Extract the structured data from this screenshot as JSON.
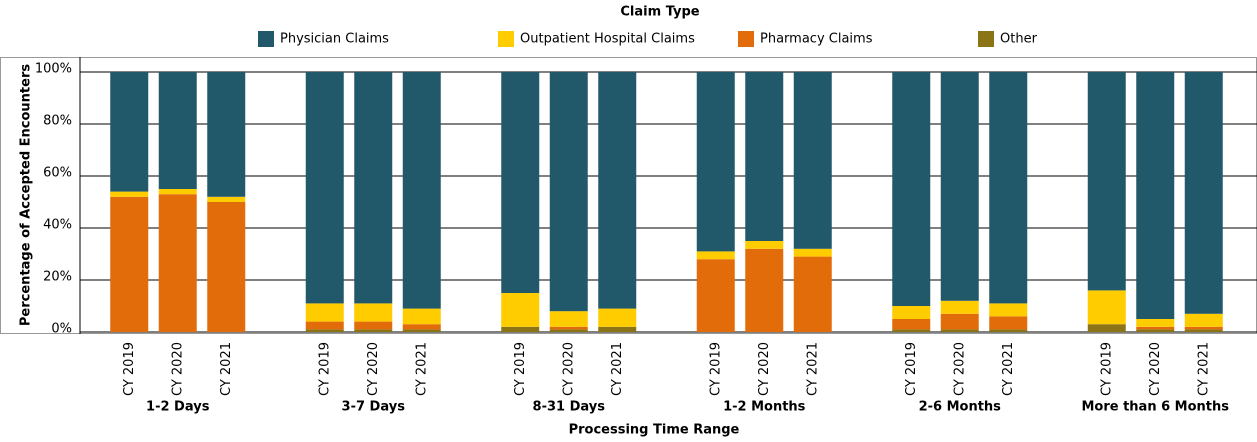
{
  "chart_data": {
    "type": "stacked_bar",
    "legend_title": "Claim Type",
    "x_label": "Processing Time Range",
    "y_label": "Percentage of Accepted Encounters",
    "groups": [
      "1-2 Days",
      "3-7 Days",
      "8-31 Days",
      "1-2 Months",
      "2-6 Months",
      "More than 6 Months"
    ],
    "categories": [
      "CY 2019",
      "CY 2020",
      "CY 2021",
      "CY 2019",
      "CY 2020",
      "CY 2021",
      "CY 2019",
      "CY 2020",
      "CY 2021",
      "CY 2019",
      "CY 2020",
      "CY 2021",
      "CY 2019",
      "CY 2020",
      "CY 2021",
      "CY 2019",
      "CY 2020",
      "CY 2021"
    ],
    "series": [
      {
        "name": "Other",
        "color": "#8b7415",
        "values": [
          0,
          0,
          0,
          1,
          1,
          1,
          2,
          1,
          2,
          0,
          0,
          0,
          1,
          1,
          1,
          3,
          1,
          1
        ]
      },
      {
        "name": "Pharmacy Claims",
        "color": "#e36c0a",
        "values": [
          52,
          53,
          50,
          3,
          3,
          2,
          0,
          1,
          0,
          28,
          32,
          29,
          4,
          6,
          5,
          0,
          1,
          1
        ]
      },
      {
        "name": "Outpatient Hospital Claims",
        "color": "#ffcc00",
        "values": [
          2,
          2,
          2,
          7,
          7,
          6,
          13,
          6,
          7,
          3,
          3,
          3,
          5,
          5,
          5,
          13,
          3,
          5
        ]
      },
      {
        "name": "Physician Claims",
        "color": "#22596a",
        "values": [
          46,
          45,
          48,
          89,
          89,
          91,
          85,
          92,
          91,
          69,
          65,
          68,
          90,
          88,
          89,
          84,
          95,
          93
        ]
      }
    ],
    "legend_order": [
      3,
      2,
      1,
      0
    ],
    "ylim": [
      0,
      100
    ],
    "yticks": [
      {
        "value": 0,
        "label": "0%"
      },
      {
        "value": 20,
        "label": "20%"
      },
      {
        "value": 40,
        "label": "40%"
      },
      {
        "value": 60,
        "label": "60%"
      },
      {
        "value": 80,
        "label": "80%"
      },
      {
        "value": 100,
        "label": "100%"
      }
    ],
    "grid": true
  }
}
